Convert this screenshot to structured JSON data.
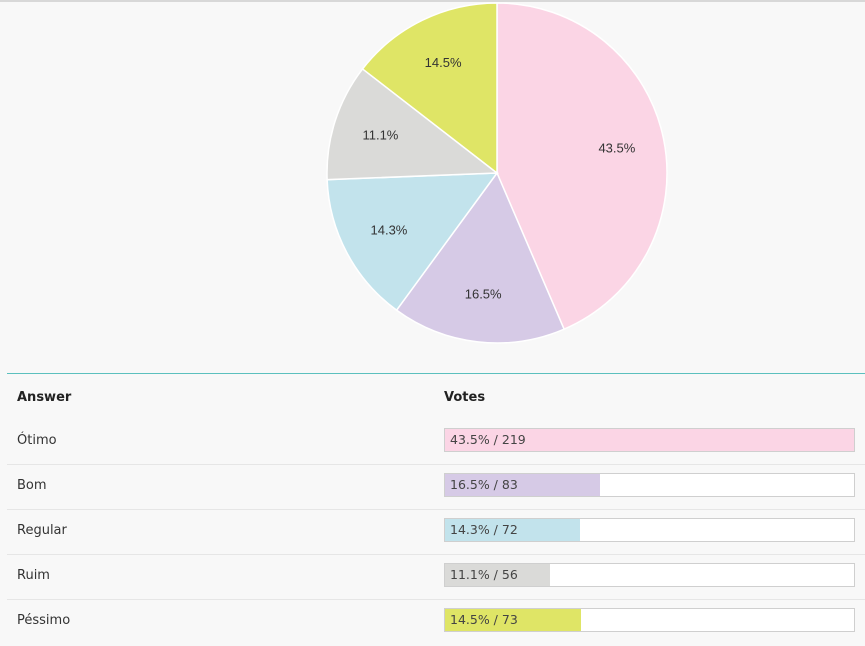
{
  "chart_data": {
    "type": "pie",
    "slices": [
      {
        "label": "Ótimo",
        "percent": 43.5,
        "votes": 219,
        "percent_label": "43.5%",
        "color": "#fbd5e5"
      },
      {
        "label": "Bom",
        "percent": 16.5,
        "votes": 83,
        "percent_label": "16.5%",
        "color": "#d6cae6"
      },
      {
        "label": "Regular",
        "percent": 14.3,
        "votes": 72,
        "percent_label": "14.3%",
        "color": "#c2e3ec"
      },
      {
        "label": "Ruim",
        "percent": 11.1,
        "votes": 56,
        "percent_label": "11.1%",
        "color": "#dadad8"
      },
      {
        "label": "Péssimo",
        "percent": 14.5,
        "votes": 73,
        "percent_label": "14.5%",
        "color": "#dfe566"
      }
    ]
  },
  "table": {
    "answer_header": "Answer",
    "votes_header": "Votes",
    "rows": [
      {
        "answer": "Ótimo",
        "votes_text": "43.5% / 219",
        "fraction": 1.0,
        "color": "#fbd5e5"
      },
      {
        "answer": "Bom",
        "votes_text": "16.5% / 83",
        "fraction": 0.379,
        "color": "#d6cae6"
      },
      {
        "answer": "Regular",
        "votes_text": "14.3% / 72",
        "fraction": 0.329,
        "color": "#c2e3ec"
      },
      {
        "answer": "Ruim",
        "votes_text": "11.1% / 56",
        "fraction": 0.256,
        "color": "#dadad8"
      },
      {
        "answer": "Péssimo",
        "votes_text": "14.5% / 73",
        "fraction": 0.333,
        "color": "#dfe566"
      }
    ]
  }
}
